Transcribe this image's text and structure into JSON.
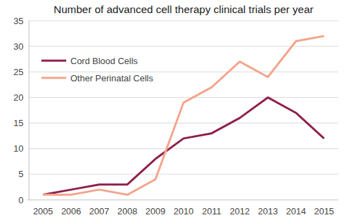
{
  "chart_data": {
    "type": "line",
    "title": "Number of advanced cell therapy clinical trials per year",
    "categories": [
      "2005",
      "2006",
      "2007",
      "2008",
      "2009",
      "2010",
      "2011",
      "2012",
      "2013",
      "2014",
      "2015"
    ],
    "series": [
      {
        "name": "Cord Blood Cells",
        "color": "#8e1f4c",
        "values": [
          1,
          2,
          3,
          3,
          8,
          12,
          13,
          16,
          20,
          17,
          12
        ]
      },
      {
        "name": "Other Perinatal Cells",
        "color": "#f4a58c",
        "values": [
          1,
          1,
          2,
          1,
          4,
          19,
          22,
          27,
          24,
          31,
          32
        ]
      }
    ],
    "ylim": [
      0,
      35
    ],
    "yticks": [
      0,
      5,
      10,
      15,
      20,
      25,
      30,
      35
    ],
    "grid": true,
    "legend": "top-left"
  }
}
